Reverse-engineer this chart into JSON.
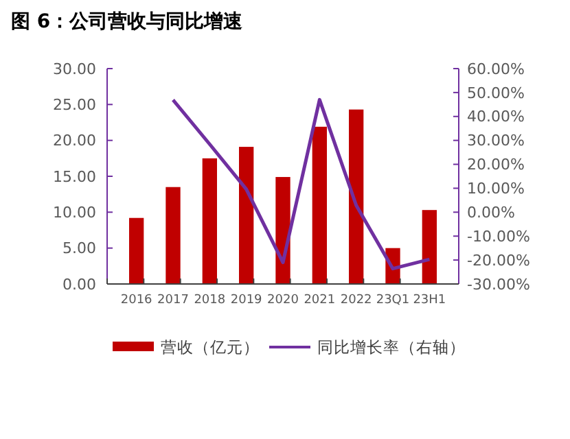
{
  "chart_data": {
    "type": "bar",
    "title": "图 6：公司营收与同比增速",
    "categories": [
      "2016",
      "2017",
      "2018",
      "2019",
      "2020",
      "2021",
      "2022",
      "23Q1",
      "23H1"
    ],
    "series": [
      {
        "name": "营收（亿元）",
        "color": "#c00000",
        "values": [
          9.2,
          13.5,
          17.5,
          19.1,
          14.9,
          21.9,
          24.3,
          5.0,
          10.3
        ]
      },
      {
        "name": "同比增长率（右轴）",
        "type": "line",
        "axis": "y2",
        "color": "#7030a0",
        "values": [
          null,
          46.9,
          28.4,
          9.6,
          -21,
          47,
          2.9,
          -23.6,
          -19.7
        ]
      }
    ],
    "ylim": [
      0,
      30
    ],
    "yticks": [
      {
        "value": 0,
        "label": "0.00"
      },
      {
        "value": 5,
        "label": "5.00"
      },
      {
        "value": 10,
        "label": "10.00"
      },
      {
        "value": 15,
        "label": "15.00"
      },
      {
        "value": 20,
        "label": "20.00"
      },
      {
        "value": 25,
        "label": "25.00"
      },
      {
        "value": 30,
        "label": "30.00"
      }
    ],
    "y2lim": [
      -30,
      60
    ],
    "y2ticks": [
      {
        "value": -30,
        "label": "-30.00%"
      },
      {
        "value": -20,
        "label": "-20.00%"
      },
      {
        "value": -10,
        "label": "-10.00%"
      },
      {
        "value": 0,
        "label": "0.00%"
      },
      {
        "value": 10,
        "label": "10.00%"
      },
      {
        "value": 20,
        "label": "20.00%"
      },
      {
        "value": 30,
        "label": "30.00%"
      },
      {
        "value": 40,
        "label": "40.00%"
      },
      {
        "value": 50,
        "label": "50.00%"
      },
      {
        "value": 60,
        "label": "60.00%"
      }
    ],
    "legend": "bottom",
    "grid": false
  }
}
